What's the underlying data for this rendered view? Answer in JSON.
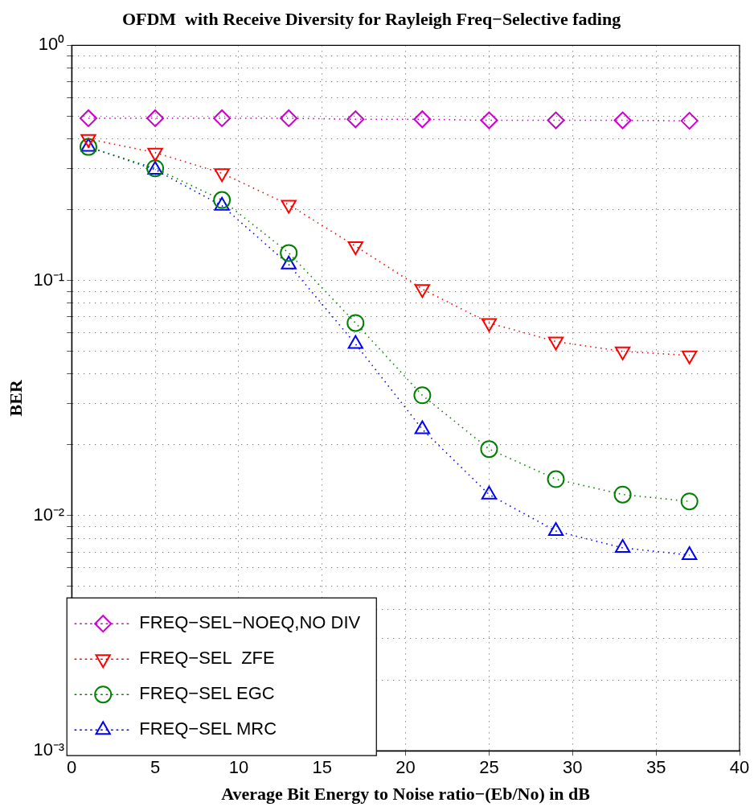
{
  "chart_data": {
    "type": "line",
    "title": "OFDM  with Receive Diversity for Rayleigh Freq−Selective fading",
    "xlabel": "Average Bit Energy to Noise ratio−(Eb/No) in dB",
    "ylabel": "BER",
    "x": [
      1,
      5,
      9,
      13,
      17,
      21,
      25,
      29,
      33,
      37
    ],
    "series": [
      {
        "name": "FREQ−SEL−NOEQ,NO DIV",
        "color": "#cc00cc",
        "marker": "diamond",
        "values": [
          0.49,
          0.49,
          0.49,
          0.49,
          0.485,
          0.485,
          0.48,
          0.48,
          0.48,
          0.478
        ]
      },
      {
        "name": "FREQ−SEL  ZFE",
        "color": "#ff0000",
        "marker": "triangle-down",
        "values": [
          0.4,
          0.35,
          0.286,
          0.21,
          0.14,
          0.092,
          0.066,
          0.055,
          0.05,
          0.048
        ]
      },
      {
        "name": "FREQ−SEL EGC",
        "color": "#008000",
        "marker": "circle",
        "values": [
          0.37,
          0.3,
          0.22,
          0.131,
          0.066,
          0.0325,
          0.0192,
          0.0143,
          0.0123,
          0.0115
        ]
      },
      {
        "name": "FREQ−SEL MRC",
        "color": "#0000ff",
        "marker": "triangle",
        "values": [
          0.37,
          0.296,
          0.208,
          0.117,
          0.0537,
          0.0233,
          0.0123,
          0.0086,
          0.0073,
          0.0068
        ]
      }
    ],
    "line_style": "dotted",
    "log": "y",
    "grid": true,
    "legend": "bottom left",
    "xlim": [
      0,
      40
    ],
    "xticks": [
      0,
      5,
      10,
      15,
      20,
      25,
      30,
      35,
      40
    ],
    "ylim": [
      0.001,
      1
    ],
    "yticks": [
      {
        "value": 0.001,
        "label": "10⁻³"
      },
      {
        "value": 0.002,
        "label": null
      },
      {
        "value": 0.003,
        "label": null
      },
      {
        "value": 0.004,
        "label": null
      },
      {
        "value": 0.005,
        "label": null
      },
      {
        "value": 0.006,
        "label": null
      },
      {
        "value": 0.007,
        "label": null
      },
      {
        "value": 0.008,
        "label": null
      },
      {
        "value": 0.009,
        "label": null
      },
      {
        "value": 0.01,
        "label": "10⁻²"
      },
      {
        "value": 0.02,
        "label": null
      },
      {
        "value": 0.03,
        "label": null
      },
      {
        "value": 0.04,
        "label": null
      },
      {
        "value": 0.05,
        "label": null
      },
      {
        "value": 0.06,
        "label": null
      },
      {
        "value": 0.07,
        "label": null
      },
      {
        "value": 0.08,
        "label": null
      },
      {
        "value": 0.09,
        "label": null
      },
      {
        "value": 0.1,
        "label": "10⁻¹"
      },
      {
        "value": 0.2,
        "label": null
      },
      {
        "value": 0.3,
        "label": null
      },
      {
        "value": 0.4,
        "label": null
      },
      {
        "value": 0.5,
        "label": null
      },
      {
        "value": 0.6,
        "label": null
      },
      {
        "value": 0.7,
        "label": null
      },
      {
        "value": 0.8,
        "label": null
      },
      {
        "value": 0.9,
        "label": null
      },
      {
        "value": 1,
        "label": "10⁰"
      }
    ]
  }
}
